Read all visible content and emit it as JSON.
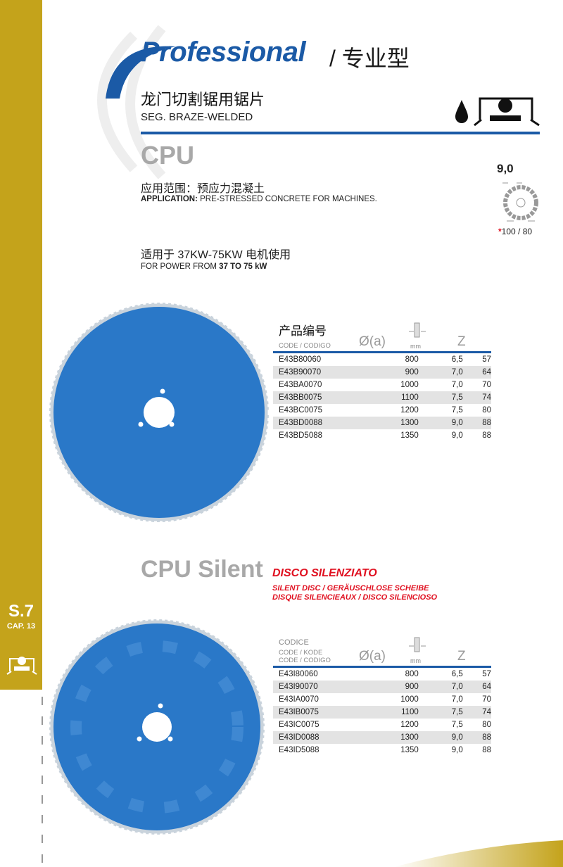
{
  "colors": {
    "brand_blue": "#1b5aa6",
    "gold": "#c4a31b",
    "red": "#e01020",
    "disc_blue": "#2a78c8"
  },
  "header": {
    "brand": "Professional",
    "brand_cn": "/ 专业型",
    "title_cn": "龙门切割锯用锯片",
    "title_en": "SEG. BRAZE-WELDED",
    "icons": [
      "water-drop-icon",
      "bridge-saw-icon"
    ]
  },
  "side": {
    "section": "S.7",
    "chapter": "CAP. 13",
    "icon": "bridge-saw-icon"
  },
  "cpu": {
    "name": "CPU",
    "application_cn": "应用范围：预应力混凝土",
    "application_label": "APPLICATION:",
    "application_text": " PRE-STRESSED CONCRETE FOR MACHINES.",
    "power_cn": "适用于 37KW-75KW 电机使用",
    "power_prefix": "FOR POWER FROM ",
    "power_bold": "37 TO 75 kW",
    "segment": {
      "thickness": "9,0",
      "star": "*",
      "height": "100 / 80"
    }
  },
  "table1": {
    "header_cn": "产品编号",
    "header_code": "CODE / CODIGO",
    "col_dia": "Ø(a)",
    "col_mm": "mm",
    "col_z": "Z",
    "rows": [
      [
        "E43B80060",
        "800",
        "6,5",
        "57"
      ],
      [
        "E43B90070",
        "900",
        "7,0",
        "64"
      ],
      [
        "E43BA0070",
        "1000",
        "7,0",
        "70"
      ],
      [
        "E43BB0075",
        "1100",
        "7,5",
        "74"
      ],
      [
        "E43BC0075",
        "1200",
        "7,5",
        "80"
      ],
      [
        "E43BD0088",
        "1300",
        "9,0",
        "88"
      ],
      [
        "E43BD5088",
        "1350",
        "9,0",
        "88"
      ]
    ]
  },
  "silent": {
    "name": "CPU Silent",
    "title": "DISCO SILENZIATO",
    "line1": "SILENT DISC  /  GERÄUSCHLOSE SCHEIBE",
    "line2": "DISQUE SILENCIEAUX  /  DISCO SILENCIOSO"
  },
  "table2": {
    "header_1": "CODICE",
    "header_2": "CODE / KODE",
    "header_3": "CODE / CODIGO",
    "col_dia": "Ø(a)",
    "col_mm": "mm",
    "col_z": "Z",
    "rows": [
      [
        "E43I80060",
        "800",
        "6,5",
        "57"
      ],
      [
        "E43I90070",
        "900",
        "7,0",
        "64"
      ],
      [
        "E43IA0070",
        "1000",
        "7,0",
        "70"
      ],
      [
        "E43IB0075",
        "1100",
        "7,5",
        "74"
      ],
      [
        "E43IC0075",
        "1200",
        "7,5",
        "80"
      ],
      [
        "E43ID0088",
        "1300",
        "9,0",
        "88"
      ],
      [
        "E43ID5088",
        "1350",
        "9,0",
        "88"
      ]
    ]
  }
}
